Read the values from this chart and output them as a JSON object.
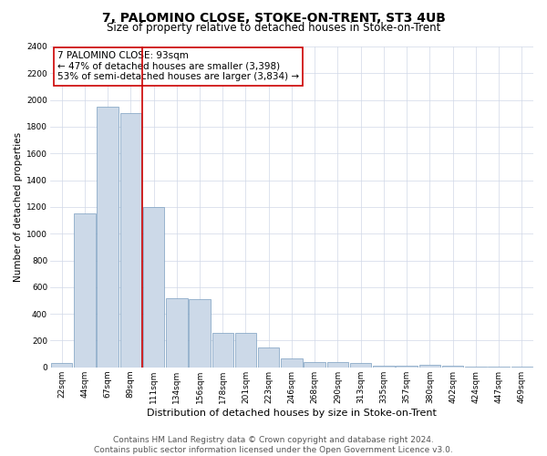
{
  "title": "7, PALOMINO CLOSE, STOKE-ON-TRENT, ST3 4UB",
  "subtitle": "Size of property relative to detached houses in Stoke-on-Trent",
  "xlabel": "Distribution of detached houses by size in Stoke-on-Trent",
  "ylabel": "Number of detached properties",
  "footer_line1": "Contains HM Land Registry data © Crown copyright and database right 2024.",
  "footer_line2": "Contains public sector information licensed under the Open Government Licence v3.0.",
  "annotation_line1": "7 PALOMINO CLOSE: 93sqm",
  "annotation_line2": "← 47% of detached houses are smaller (3,398)",
  "annotation_line3": "53% of semi-detached houses are larger (3,834) →",
  "bar_color": "#ccd9e8",
  "bar_edge_color": "#7a9ec0",
  "vline_color": "#cc0000",
  "annotation_box_edgecolor": "#cc0000",
  "grid_color": "#d0d8e8",
  "categories": [
    "22sqm",
    "44sqm",
    "67sqm",
    "89sqm",
    "111sqm",
    "134sqm",
    "156sqm",
    "178sqm",
    "201sqm",
    "223sqm",
    "246sqm",
    "268sqm",
    "290sqm",
    "313sqm",
    "335sqm",
    "357sqm",
    "380sqm",
    "402sqm",
    "424sqm",
    "447sqm",
    "469sqm"
  ],
  "values": [
    30,
    1150,
    1950,
    1900,
    1200,
    520,
    510,
    260,
    260,
    150,
    70,
    40,
    40,
    30,
    10,
    12,
    18,
    10,
    5,
    5,
    5
  ],
  "vline_position": 3.5,
  "ylim": [
    0,
    2400
  ],
  "yticks": [
    0,
    200,
    400,
    600,
    800,
    1000,
    1200,
    1400,
    1600,
    1800,
    2000,
    2200,
    2400
  ],
  "title_fontsize": 10,
  "subtitle_fontsize": 8.5,
  "xlabel_fontsize": 8,
  "ylabel_fontsize": 7.5,
  "tick_fontsize": 6.5,
  "annotation_fontsize": 7.5,
  "footer_fontsize": 6.5
}
